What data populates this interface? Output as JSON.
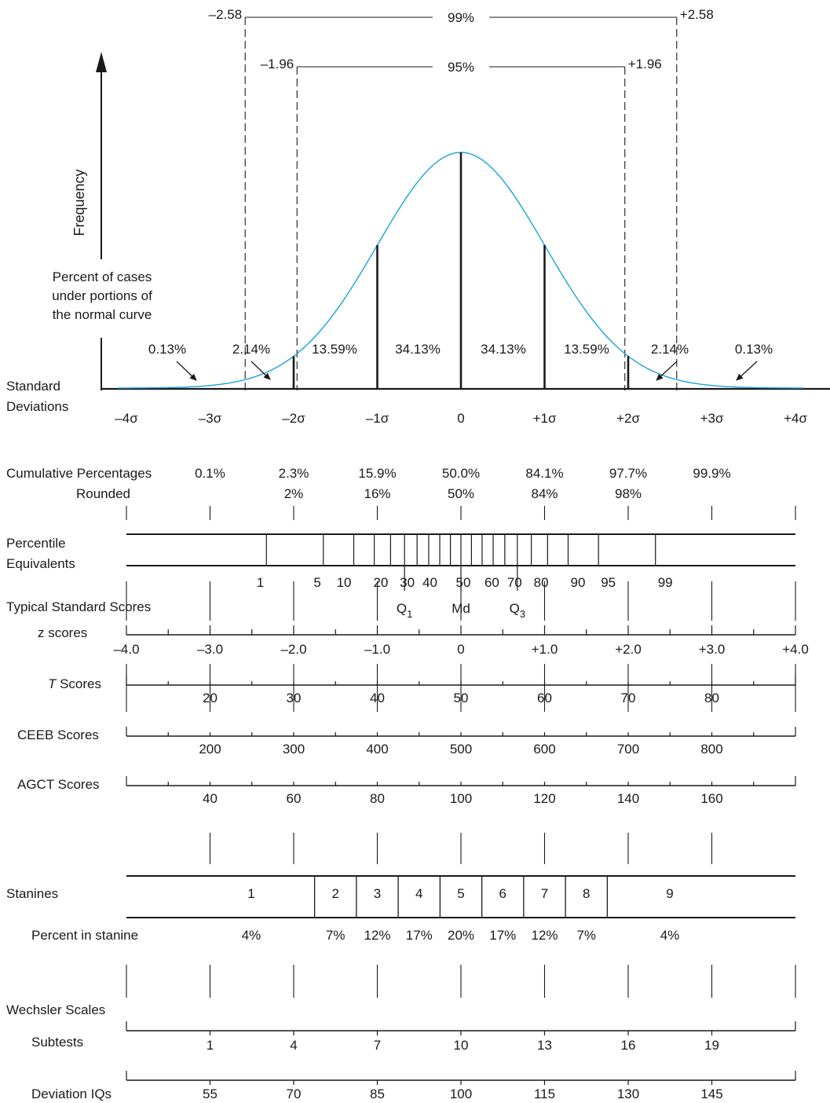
{
  "colors": {
    "curve": "#1aa3d9",
    "ink": "#1a1a1a"
  },
  "icons": [
    "frequency-arrow-icon",
    "callout-arrow-icon"
  ],
  "chart_data": {
    "type": "diagram",
    "subject": "normal curve with standard score scales",
    "sigma_range": [
      -4,
      4
    ],
    "confidence_bands": [
      {
        "level": "99%",
        "lower": -2.58,
        "upper": 2.58,
        "lower_label": "–2.58",
        "upper_label": "+2.58"
      },
      {
        "level": "95%",
        "lower": -1.96,
        "upper": 1.96,
        "lower_label": "–1.96",
        "upper_label": "+1.96"
      }
    ],
    "y_axis_label": "Frequency",
    "curve_note": [
      "Percent of cases",
      "under portions of",
      "the normal curve"
    ],
    "area_percents": [
      {
        "label": "0.13%",
        "from": -4,
        "to": -3
      },
      {
        "label": "2.14%",
        "from": -3,
        "to": -2
      },
      {
        "label": "13.59%",
        "from": -2,
        "to": -1
      },
      {
        "label": "34.13%",
        "from": -1,
        "to": 0
      },
      {
        "label": "34.13%",
        "from": 0,
        "to": 1
      },
      {
        "label": "13.59%",
        "from": 1,
        "to": 2
      },
      {
        "label": "2.14%",
        "from": 2,
        "to": 3
      },
      {
        "label": "0.13%",
        "from": 3,
        "to": 4
      }
    ],
    "standard_deviations": {
      "label": [
        "Standard",
        "Deviations"
      ],
      "ticks": [
        {
          "z": -4,
          "label": "–4σ"
        },
        {
          "z": -3,
          "label": "–3σ"
        },
        {
          "z": -2,
          "label": "–2σ"
        },
        {
          "z": -1,
          "label": "–1σ"
        },
        {
          "z": 0,
          "label": "0"
        },
        {
          "z": 1,
          "label": "+1σ"
        },
        {
          "z": 2,
          "label": "+2σ"
        },
        {
          "z": 3,
          "label": "+3σ"
        },
        {
          "z": 4,
          "label": "+4σ"
        }
      ]
    },
    "cumulative_percentages": {
      "label": "Cumulative Percentages",
      "rounded_label": "Rounded",
      "values": [
        {
          "z": -3,
          "value": "0.1%",
          "rounded": ""
        },
        {
          "z": -2,
          "value": "2.3%",
          "rounded": "2%"
        },
        {
          "z": -1,
          "value": "15.9%",
          "rounded": "16%"
        },
        {
          "z": 0,
          "value": "50.0%",
          "rounded": "50%"
        },
        {
          "z": 1,
          "value": "84.1%",
          "rounded": "84%"
        },
        {
          "z": 2,
          "value": "97.7%",
          "rounded": "98%"
        },
        {
          "z": 3,
          "value": "99.9%",
          "rounded": ""
        }
      ]
    },
    "percentile_equivalents": {
      "label": [
        "Percentile",
        "Equivalents"
      ],
      "lines": [
        {
          "p": 1,
          "z": -2.326
        },
        {
          "p": 5,
          "z": -1.645
        },
        {
          "p": 10,
          "z": -1.2816
        },
        {
          "p": 20,
          "z": -0.8416
        },
        {
          "p": 30,
          "z": -0.5244
        },
        {
          "p": 40,
          "z": -0.2533
        },
        {
          "p": 50,
          "z": 0
        },
        {
          "p": 60,
          "z": 0.2533
        },
        {
          "p": 70,
          "z": 0.5244
        },
        {
          "p": 80,
          "z": 0.8416
        },
        {
          "p": 90,
          "z": 1.2816
        },
        {
          "p": 95,
          "z": 1.645
        },
        {
          "p": 99,
          "z": 2.326
        }
      ],
      "minor_lines_z": [
        -1.0364,
        -0.6745,
        -0.3853,
        -0.1257,
        0.1257,
        0.3853,
        0.6745,
        1.0364
      ],
      "labels": [
        {
          "text": "1",
          "z": -2.326
        },
        {
          "text": "5",
          "z": -1.645
        },
        {
          "text": "10",
          "z": -1.2816
        },
        {
          "text": "20",
          "z": -0.8416
        },
        {
          "text": "30",
          "z": -0.5244
        },
        {
          "text": "40",
          "z": -0.2533
        },
        {
          "text": "50",
          "z": 0
        },
        {
          "text": "60",
          "z": 0.2533
        },
        {
          "text": "70",
          "z": 0.5244
        },
        {
          "text": "80",
          "z": 0.8416
        },
        {
          "text": "90",
          "z": 1.2816
        },
        {
          "text": "95",
          "z": 1.645
        },
        {
          "text": "99",
          "z": 2.326
        }
      ],
      "quartiles": [
        {
          "label": "Q",
          "sub": "1",
          "z": -0.6745
        },
        {
          "label": "Md",
          "sub": "",
          "z": 0
        },
        {
          "label": "Q",
          "sub": "3",
          "z": 0.6745
        }
      ]
    },
    "typical_standard_scores_label": "Typical Standard Scores",
    "z_scores": {
      "label": "z scores",
      "ticks": [
        {
          "z": -4,
          "label": "–4.0"
        },
        {
          "z": -3,
          "label": "–3.0"
        },
        {
          "z": -2,
          "label": "–2.0"
        },
        {
          "z": -1,
          "label": "–1.0"
        },
        {
          "z": 0,
          "label": "0"
        },
        {
          "z": 1,
          "label": "+1.0"
        },
        {
          "z": 2,
          "label": "+2.0"
        },
        {
          "z": 3,
          "label": "+3.0"
        },
        {
          "z": 4,
          "label": "+4.0"
        }
      ]
    },
    "t_scores": {
      "label_italic": "T",
      "label_rest": " Scores",
      "ticks": [
        {
          "z": -3,
          "label": "20"
        },
        {
          "z": -2,
          "label": "30"
        },
        {
          "z": -1,
          "label": "40"
        },
        {
          "z": 0,
          "label": "50"
        },
        {
          "z": 1,
          "label": "60"
        },
        {
          "z": 2,
          "label": "70"
        },
        {
          "z": 3,
          "label": "80"
        }
      ]
    },
    "ceeb_scores": {
      "label": "CEEB Scores",
      "ticks": [
        {
          "z": -3,
          "label": "200"
        },
        {
          "z": -2,
          "label": "300"
        },
        {
          "z": -1,
          "label": "400"
        },
        {
          "z": 0,
          "label": "500"
        },
        {
          "z": 1,
          "label": "600"
        },
        {
          "z": 2,
          "label": "700"
        },
        {
          "z": 3,
          "label": "800"
        }
      ]
    },
    "agct_scores": {
      "label": "AGCT Scores",
      "ticks": [
        {
          "z": -3,
          "label": "40"
        },
        {
          "z": -2,
          "label": "60"
        },
        {
          "z": -1,
          "label": "80"
        },
        {
          "z": 0,
          "label": "100"
        },
        {
          "z": 1,
          "label": "120"
        },
        {
          "z": 2,
          "label": "140"
        },
        {
          "z": 3,
          "label": "160"
        }
      ]
    },
    "stanines": {
      "label": "Stanines",
      "percent_label": "Percent in stanine",
      "cells": [
        {
          "stanine": "1",
          "percent": "4%",
          "from": -4,
          "to": -1.75
        },
        {
          "stanine": "2",
          "percent": "7%",
          "from": -1.75,
          "to": -1.25
        },
        {
          "stanine": "3",
          "percent": "12%",
          "from": -1.25,
          "to": -0.75
        },
        {
          "stanine": "4",
          "percent": "17%",
          "from": -0.75,
          "to": -0.25
        },
        {
          "stanine": "5",
          "percent": "20%",
          "from": -0.25,
          "to": 0.25
        },
        {
          "stanine": "6",
          "percent": "17%",
          "from": 0.25,
          "to": 0.75
        },
        {
          "stanine": "7",
          "percent": "12%",
          "from": 0.75,
          "to": 1.25
        },
        {
          "stanine": "8",
          "percent": "7%",
          "from": 1.25,
          "to": 1.75
        },
        {
          "stanine": "9",
          "percent": "4%",
          "from": 1.75,
          "to": 4
        }
      ]
    },
    "wechsler_scales_label": "Wechsler Scales",
    "subtests": {
      "label": "Subtests",
      "ticks": [
        {
          "z": -3,
          "label": "1"
        },
        {
          "z": -2,
          "label": "4"
        },
        {
          "z": -1,
          "label": "7"
        },
        {
          "z": 0,
          "label": "10"
        },
        {
          "z": 1,
          "label": "13"
        },
        {
          "z": 2,
          "label": "16"
        },
        {
          "z": 3,
          "label": "19"
        }
      ]
    },
    "deviation_iqs": {
      "label": "Deviation IQs",
      "ticks": [
        {
          "z": -3,
          "label": "55"
        },
        {
          "z": -2,
          "label": "70"
        },
        {
          "z": -1,
          "label": "85"
        },
        {
          "z": 0,
          "label": "100"
        },
        {
          "z": 1,
          "label": "115"
        },
        {
          "z": 2,
          "label": "130"
        },
        {
          "z": 3,
          "label": "145"
        }
      ]
    }
  }
}
